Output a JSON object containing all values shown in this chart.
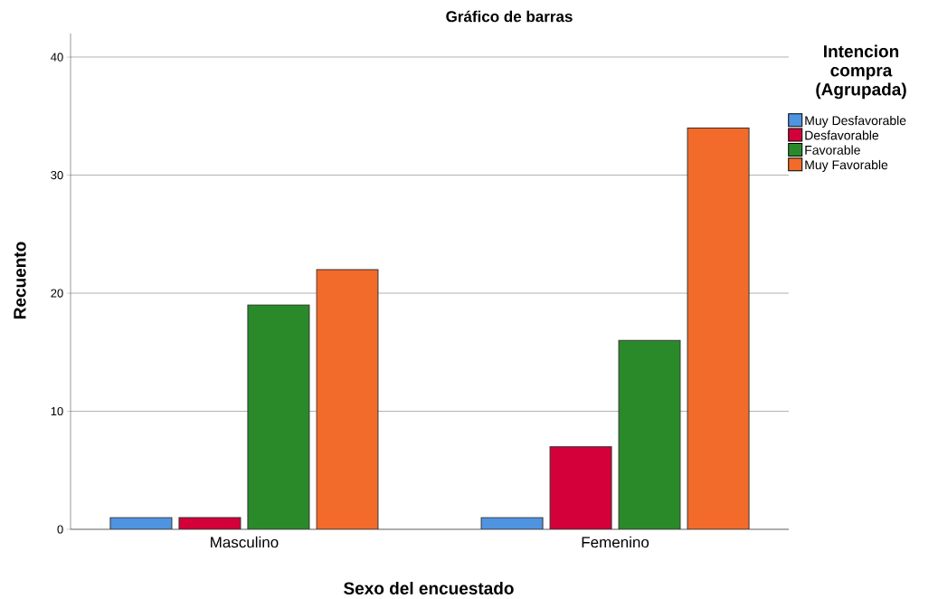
{
  "chart_data": {
    "type": "bar",
    "title": "Gráfico de barras",
    "xlabel": "Sexo del encuestado",
    "ylabel": "Recuento",
    "legend_title": "Intencion compra (Agrupada)",
    "categories": [
      "Masculino",
      "Femenino"
    ],
    "series": [
      {
        "name": "Muy Desfavorable",
        "color": "#4f94e0",
        "values": [
          1,
          1
        ]
      },
      {
        "name": "Desfavorable",
        "color": "#d3003a",
        "values": [
          1,
          7
        ]
      },
      {
        "name": "Favorable",
        "color": "#2a8a2a",
        "values": [
          19,
          16
        ]
      },
      {
        "name": "Muy Favorable",
        "color": "#f26b2a",
        "values": [
          22,
          34
        ]
      }
    ],
    "ylim": [
      0,
      42
    ],
    "yticks": [
      0,
      10,
      20,
      30,
      40
    ],
    "grid": "y",
    "legend": "right"
  }
}
